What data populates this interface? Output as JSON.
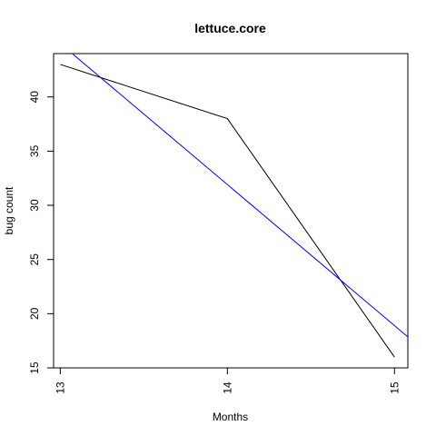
{
  "chart_data": {
    "type": "line",
    "title": "lettuce.core",
    "xlabel": "Months",
    "ylabel": "bug count",
    "xlim": [
      12.96,
      15.08
    ],
    "ylim": [
      15,
      44
    ],
    "x_ticks": [
      13,
      14,
      15
    ],
    "y_ticks": [
      15,
      20,
      25,
      30,
      35,
      40
    ],
    "grid": false,
    "series": [
      {
        "color": "#000000",
        "x": [
          13,
          14,
          15
        ],
        "y": [
          43,
          38,
          16
        ]
      },
      {
        "color": "#0000ff",
        "kind": "fit-line",
        "x": [
          12.96,
          15.08
        ],
        "y": [
          45.45,
          17.86
        ]
      }
    ]
  }
}
